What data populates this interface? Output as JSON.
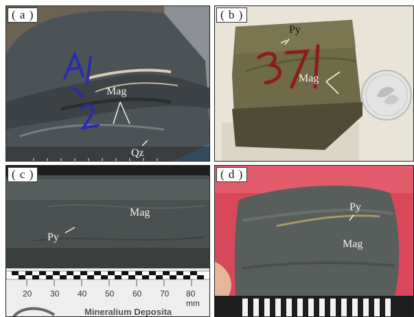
{
  "panels": [
    {
      "tag": "( a )",
      "labels": {
        "mag": "Mag",
        "qz": "Qz"
      },
      "sample_number": "A1-2"
    },
    {
      "tag": "( b )",
      "labels": {
        "py": "Py",
        "mag": "Mag"
      },
      "sample_number": "371"
    },
    {
      "tag": "( c )",
      "labels": {
        "py": "Py",
        "mag": "Mag"
      },
      "ruler": {
        "ticks": [
          "20",
          "30",
          "40",
          "50",
          "60",
          "70",
          "80 mm"
        ],
        "brand": "Mineralium Deposita"
      }
    },
    {
      "tag": "( d )",
      "labels": {
        "py": "Py",
        "mag": "Mag"
      }
    }
  ],
  "colors": {
    "panel_border": "#222222",
    "label_text": "#f4f4f4",
    "dark_text": "#111111"
  }
}
